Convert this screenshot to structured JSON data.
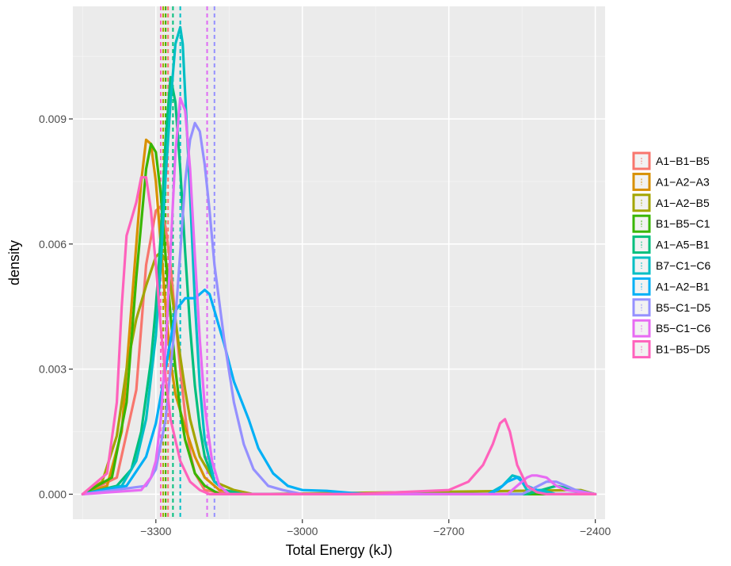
{
  "chart_data": {
    "type": "line",
    "title": "",
    "xlabel": "Total Energy (kJ)",
    "ylabel": "density",
    "xlim": [
      -3470,
      -2380
    ],
    "ylim": [
      -0.0006,
      0.0117
    ],
    "xticks": [
      -3300,
      -3000,
      -2700,
      -2400
    ],
    "xtick_labels": [
      "−3300",
      "−3000",
      "−2700",
      "−2400"
    ],
    "yticks": [
      0.0,
      0.003,
      0.006,
      0.009
    ],
    "ytick_labels": [
      "0.000",
      "0.003",
      "0.006",
      "0.009"
    ],
    "grid": true,
    "panel_background": "#ebebeb",
    "legend_position": "right",
    "series": [
      {
        "name": "A1−B1−B5",
        "color": "#F8766D",
        "mean": -3275,
        "x": [
          -3450,
          -3380,
          -3340,
          -3320,
          -3300,
          -3290,
          -3280,
          -3270,
          -3260,
          -3250,
          -3240,
          -3230,
          -3220,
          -3200,
          -3150,
          -2400
        ],
        "y": [
          0,
          0.0004,
          0.0025,
          0.0055,
          0.0068,
          0.0069,
          0.0064,
          0.0055,
          0.0042,
          0.003,
          0.0019,
          0.001,
          0.0005,
          0.0001,
          0,
          0
        ]
      },
      {
        "name": "A1−A2−A3",
        "color": "#D89000",
        "mean": -3280,
        "x": [
          -3450,
          -3400,
          -3370,
          -3350,
          -3330,
          -3320,
          -3310,
          -3300,
          -3290,
          -3280,
          -3270,
          -3260,
          -3240,
          -3220,
          -3200,
          -3170,
          -3100,
          -2400
        ],
        "y": [
          0,
          0.0002,
          0.0015,
          0.0045,
          0.0075,
          0.0085,
          0.0084,
          0.0075,
          0.006,
          0.0045,
          0.0032,
          0.0024,
          0.0016,
          0.0009,
          0.0004,
          0.0001,
          0,
          0
        ]
      },
      {
        "name": "A1−A2−B5",
        "color": "#A3A500",
        "mean": -3285,
        "x": [
          -3450,
          -3410,
          -3380,
          -3360,
          -3340,
          -3320,
          -3300,
          -3290,
          -3280,
          -3270,
          -3260,
          -3250,
          -3240,
          -3230,
          -3210,
          -3180,
          -3140,
          -3100,
          -2430,
          -2400
        ],
        "y": [
          0,
          0.0003,
          0.0014,
          0.003,
          0.0042,
          0.005,
          0.0057,
          0.0058,
          0.0056,
          0.005,
          0.0042,
          0.0033,
          0.0025,
          0.0018,
          0.0009,
          0.0003,
          0.0001,
          0,
          0.0001,
          0
        ]
      },
      {
        "name": "B1−B5−C1",
        "color": "#39B600",
        "mean": -3280,
        "x": [
          -3450,
          -3390,
          -3360,
          -3340,
          -3320,
          -3310,
          -3300,
          -3290,
          -3280,
          -3270,
          -3260,
          -3250,
          -3240,
          -3220,
          -3200,
          -3170,
          -3150,
          -2400
        ],
        "y": [
          0,
          0.0004,
          0.0022,
          0.0052,
          0.0078,
          0.0084,
          0.0082,
          0.0072,
          0.0057,
          0.0043,
          0.003,
          0.002,
          0.0013,
          0.0005,
          0.0002,
          0,
          0,
          0
        ]
      },
      {
        "name": "A1−A5−B1",
        "color": "#00BF7D",
        "mean": -3265,
        "x": [
          -3450,
          -3380,
          -3350,
          -3330,
          -3310,
          -3300,
          -3290,
          -3280,
          -3270,
          -3260,
          -3250,
          -3240,
          -3230,
          -3220,
          -3210,
          -3200,
          -3180,
          -3160,
          -3120,
          -2540,
          -2480,
          -2400
        ],
        "y": [
          0,
          0.0002,
          0.0006,
          0.0015,
          0.0032,
          0.0045,
          0.0062,
          0.0085,
          0.01,
          0.0094,
          0.0078,
          0.0058,
          0.004,
          0.0026,
          0.0016,
          0.0009,
          0.0003,
          0.0001,
          0,
          0,
          0.0002,
          0
        ]
      },
      {
        "name": "B7−C1−C6",
        "color": "#00BFC4",
        "mean": -3250,
        "x": [
          -3450,
          -3370,
          -3340,
          -3320,
          -3300,
          -3290,
          -3280,
          -3270,
          -3260,
          -3250,
          -3245,
          -3240,
          -3230,
          -3220,
          -3210,
          -3200,
          -3180,
          -3150,
          -2620,
          -2590,
          -2570,
          -2555,
          -2540,
          -2510,
          -2480,
          -2400
        ],
        "y": [
          0,
          0.0002,
          0.0008,
          0.0018,
          0.0038,
          0.0055,
          0.0076,
          0.0094,
          0.0108,
          0.0112,
          0.0108,
          0.0096,
          0.0072,
          0.0046,
          0.0026,
          0.0013,
          0.0003,
          0,
          0,
          0.0002,
          0.00045,
          0.0004,
          0.0001,
          0.0001,
          0,
          0
        ]
      },
      {
        "name": "A1−A2−B1",
        "color": "#00B0F6",
        "mean": -3195,
        "x": [
          -3450,
          -3360,
          -3320,
          -3300,
          -3280,
          -3260,
          -3240,
          -3220,
          -3210,
          -3200,
          -3190,
          -3180,
          -3160,
          -3140,
          -3110,
          -3090,
          -3060,
          -3030,
          -3000,
          -2950,
          -2900,
          -2850,
          -2800,
          -2700,
          -2620,
          -2600,
          -2580,
          -2560,
          -2540,
          -2500,
          -2450,
          -2400
        ],
        "y": [
          0,
          0.0002,
          0.0009,
          0.0017,
          0.003,
          0.0044,
          0.0047,
          0.0047,
          0.0048,
          0.0049,
          0.0048,
          0.0044,
          0.0036,
          0.0027,
          0.0018,
          0.0011,
          0.0005,
          0.0002,
          0.0001,
          8e-05,
          3e-05,
          0,
          0,
          0,
          0,
          0.0001,
          0.0003,
          0.0004,
          0.0002,
          0,
          0,
          0
        ]
      },
      {
        "name": "B5−C1−D5",
        "color": "#9590FF",
        "mean": -3180,
        "x": [
          -3450,
          -3320,
          -3300,
          -3280,
          -3260,
          -3250,
          -3240,
          -3230,
          -3220,
          -3210,
          -3200,
          -3190,
          -3180,
          -3160,
          -3140,
          -3120,
          -3100,
          -3070,
          -3040,
          -3000,
          -2550,
          -2500,
          -2480,
          -2460,
          -2440,
          -2400
        ],
        "y": [
          0,
          0.0002,
          0.0006,
          0.0018,
          0.0042,
          0.0058,
          0.0075,
          0.0085,
          0.0089,
          0.0087,
          0.0079,
          0.0068,
          0.0055,
          0.0037,
          0.0022,
          0.0012,
          0.0006,
          0.0002,
          0.0001,
          0,
          0,
          0.0003,
          0.0003,
          0.0002,
          0.0001,
          0
        ]
      },
      {
        "name": "B5−C1−C6",
        "color": "#E76BF3",
        "mean": -3195,
        "x": [
          -3450,
          -3330,
          -3310,
          -3300,
          -3290,
          -3280,
          -3270,
          -3260,
          -3250,
          -3240,
          -3230,
          -3220,
          -3210,
          -3200,
          -3185,
          -3170,
          -3150,
          -2580,
          -2560,
          -2540,
          -2530,
          -2520,
          -2500,
          -2480,
          -2460,
          -2400
        ],
        "y": [
          0,
          0.0001,
          0.0004,
          0.0008,
          0.0018,
          0.0035,
          0.0058,
          0.0082,
          0.0095,
          0.0092,
          0.0078,
          0.0057,
          0.0037,
          0.0021,
          0.0008,
          0.0002,
          0,
          0,
          0.0002,
          0.0004,
          0.00045,
          0.00045,
          0.0004,
          0.0002,
          0.0001,
          0
        ]
      },
      {
        "name": "B1−B5−D5",
        "color": "#FF62BC",
        "mean": -3290,
        "x": [
          -3450,
          -3400,
          -3380,
          -3370,
          -3360,
          -3350,
          -3340,
          -3330,
          -3320,
          -3310,
          -3300,
          -3290,
          -3280,
          -3270,
          -3250,
          -3230,
          -3210,
          -3190,
          -3150,
          -2900,
          -2800,
          -2700,
          -2660,
          -2630,
          -2610,
          -2595,
          -2585,
          -2575,
          -2560,
          -2540,
          -2520,
          -2500,
          -2470,
          -2400
        ],
        "y": [
          0,
          0.0005,
          0.0022,
          0.0045,
          0.0062,
          0.0066,
          0.007,
          0.0076,
          0.0076,
          0.0068,
          0.0055,
          0.004,
          0.0028,
          0.0018,
          0.0008,
          0.0003,
          0.0001,
          0,
          0,
          0,
          5e-05,
          0.0001,
          0.0003,
          0.0007,
          0.0012,
          0.0017,
          0.0018,
          0.0015,
          0.0007,
          0.0002,
          5e-05,
          0,
          0,
          0
        ]
      }
    ]
  }
}
